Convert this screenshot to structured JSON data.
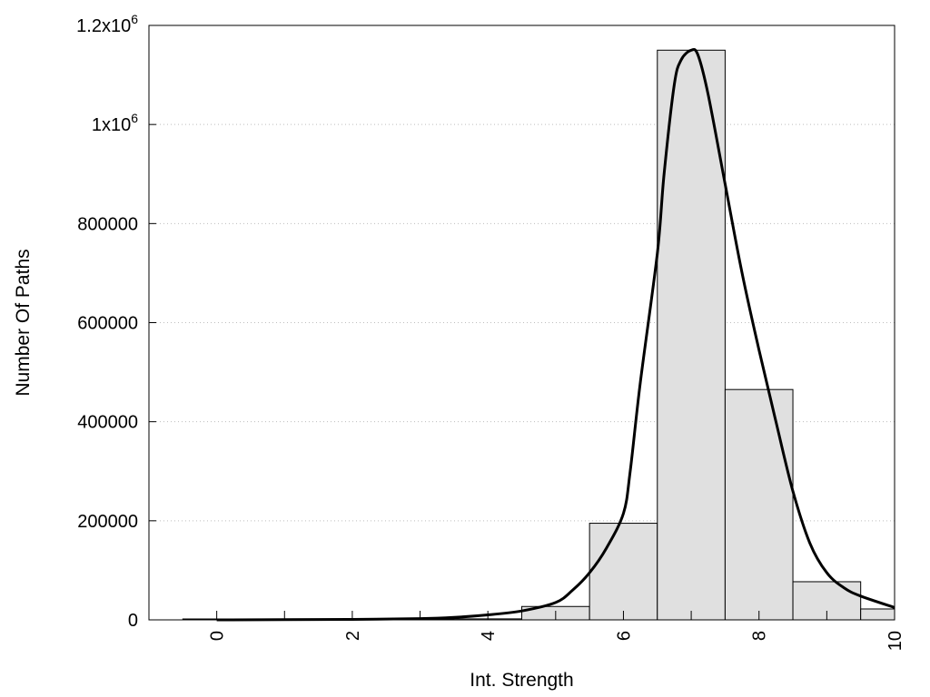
{
  "chart_data": {
    "type": "bar",
    "title": "",
    "xlabel": "Int. Strength",
    "ylabel": "Number Of Paths",
    "xlim": [
      -1,
      10
    ],
    "ylim": [
      0,
      1200000
    ],
    "x_ticks": [
      "0",
      "2",
      "4",
      "6",
      "8",
      "10"
    ],
    "y_ticks": [
      {
        "value": 0,
        "label": "0"
      },
      {
        "value": 200000,
        "label": "200000"
      },
      {
        "value": 400000,
        "label": "400000"
      },
      {
        "value": 600000,
        "label": "600000"
      },
      {
        "value": 800000,
        "label": "800000"
      },
      {
        "value": 1000000,
        "label": "1x10",
        "sup": "6"
      },
      {
        "value": 1200000,
        "label": "1.2x10",
        "sup": "6"
      }
    ],
    "grid": "horizontal-dotted",
    "bar_width": 1,
    "bars": [
      {
        "x": 0,
        "value": 0
      },
      {
        "x": 1,
        "value": 0
      },
      {
        "x": 2,
        "value": 0
      },
      {
        "x": 3,
        "value": 0
      },
      {
        "x": 4,
        "value": 2000
      },
      {
        "x": 5,
        "value": 27000
      },
      {
        "x": 6,
        "value": 195000
      },
      {
        "x": 7,
        "value": 1150000
      },
      {
        "x": 8,
        "value": 465000
      },
      {
        "x": 9,
        "value": 77000
      },
      {
        "x": 10,
        "value": 22000
      }
    ],
    "curve": {
      "x": [
        0,
        1,
        2,
        3,
        3.5,
        4,
        4.5,
        5,
        5.25,
        5.5,
        5.75,
        6,
        6.1,
        6.25,
        6.5,
        6.6,
        6.75,
        6.85,
        7,
        7.1,
        7.25,
        7.5,
        7.75,
        8,
        8.25,
        8.5,
        8.75,
        9,
        9.25,
        9.5,
        10
      ],
      "y": [
        0,
        500,
        1000,
        2500,
        5000,
        10000,
        18000,
        35000,
        60000,
        95000,
        145000,
        215000,
        300000,
        480000,
        740000,
        900000,
        1080000,
        1130000,
        1150000,
        1140000,
        1060000,
        880000,
        700000,
        545000,
        400000,
        260000,
        155000,
        95000,
        65000,
        48000,
        25000
      ]
    },
    "colors": {
      "bar_fill": "#e0e0e0",
      "bar_stroke": "#000000",
      "curve": "#000000"
    }
  }
}
